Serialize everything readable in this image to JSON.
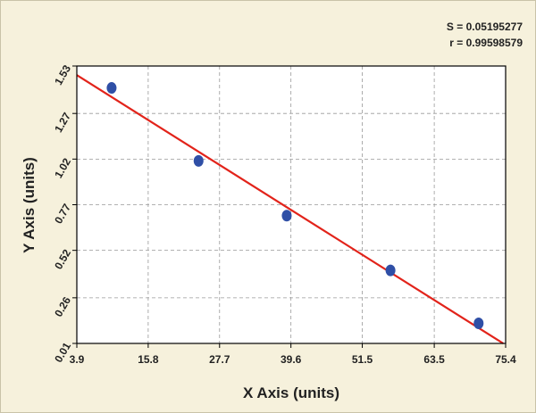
{
  "chart_data": {
    "type": "scatter",
    "x_label": "X Axis (units)",
    "y_label": "Y Axis (units)",
    "annotations": [
      "S = 0.05195277",
      "r = 0.99598579"
    ],
    "x": [
      9.7,
      24.2,
      38.9,
      56.2,
      70.9
    ],
    "values": [
      1.41,
      1.01,
      0.71,
      0.41,
      0.12
    ],
    "color": "#2f4fa6",
    "fit_line": {
      "x": [
        3.9,
        75.0
      ],
      "y": [
        1.48,
        0.01
      ],
      "color": "#e2231a"
    },
    "xlim": [
      3.9,
      75.4
    ],
    "xticks": [
      3.9,
      15.8,
      27.7,
      39.6,
      51.5,
      63.5,
      75.4
    ],
    "ylim": [
      0.01,
      1.53
    ],
    "yticks": [
      0.01,
      0.26,
      0.52,
      0.77,
      1.02,
      1.27,
      1.53
    ],
    "grid": true
  }
}
